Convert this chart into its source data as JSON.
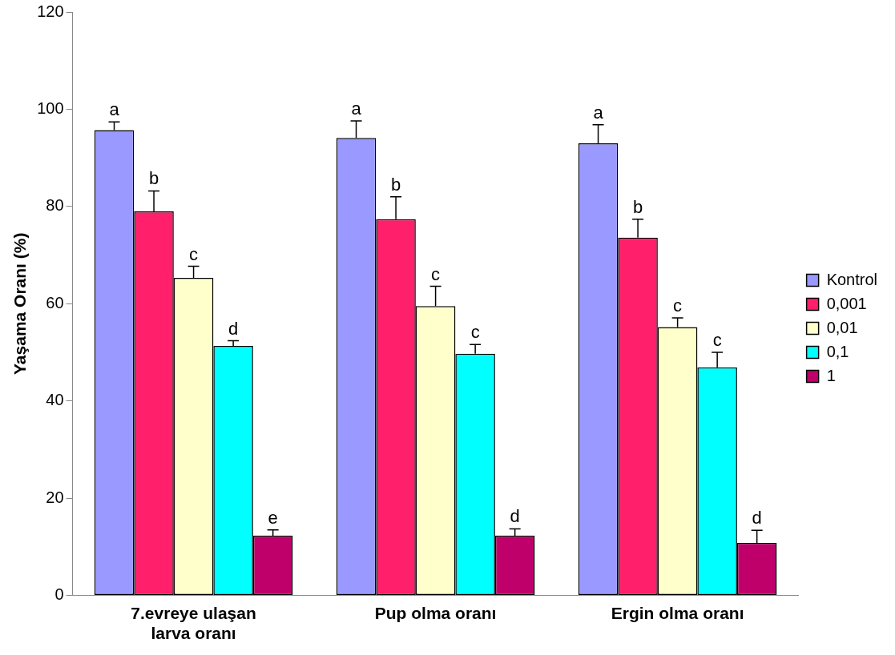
{
  "chart_data": {
    "type": "bar",
    "ylabel": "Yaşama Oranı (%)",
    "categories": [
      "7.evreye ulaşan larva oranı",
      "Pup olma oranı",
      "Ergin olma oranı"
    ],
    "series": [
      {
        "name": "Kontrol",
        "color": "#9999ff",
        "values": [
          95.7,
          94.1,
          93.0
        ],
        "errors": [
          [
            95.7,
            97.4
          ],
          [
            94.1,
            97.6
          ],
          [
            93.0,
            96.8
          ]
        ],
        "value_labels": [
          "a",
          "a",
          "a"
        ]
      },
      {
        "name": "0,001",
        "color": "#ff1f6b",
        "values": [
          79.0,
          77.4,
          73.6
        ],
        "errors": [
          [
            79.0,
            83.2
          ],
          [
            77.4,
            82.0
          ],
          [
            73.6,
            77.4
          ]
        ],
        "value_labels": [
          "b",
          "b",
          "b"
        ]
      },
      {
        "name": "0,01",
        "color": "#ffffcc",
        "values": [
          65.3,
          59.5,
          55.2
        ],
        "errors": [
          [
            65.3,
            67.7
          ],
          [
            59.5,
            63.6
          ],
          [
            55.2,
            57.1
          ]
        ],
        "value_labels": [
          "c",
          "c",
          "c"
        ]
      },
      {
        "name": "0,1",
        "color": "#00ffff",
        "values": [
          51.3,
          49.7,
          46.9
        ],
        "errors": [
          [
            51.3,
            52.4
          ],
          [
            49.7,
            51.6
          ],
          [
            46.9,
            50.0
          ]
        ],
        "value_labels": [
          "d",
          "c",
          "c"
        ]
      },
      {
        "name": "1",
        "color": "#c0006a",
        "values": [
          12.3,
          12.3,
          10.8
        ],
        "errors": [
          [
            12.3,
            13.5
          ],
          [
            12.3,
            13.7
          ],
          [
            10.8,
            13.4
          ]
        ],
        "value_labels": [
          "e",
          "d",
          "d"
        ]
      }
    ],
    "ylim": [
      0,
      120
    ],
    "yticks": [
      0,
      20,
      40,
      60,
      80,
      100,
      120
    ],
    "grid": false,
    "legend": "right"
  }
}
